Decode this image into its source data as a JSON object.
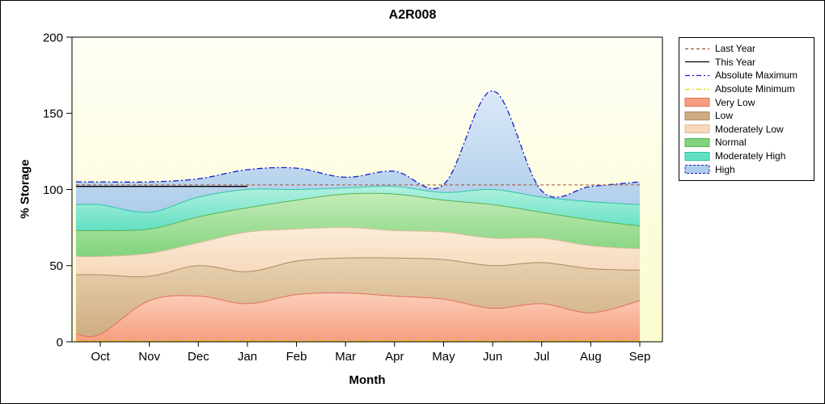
{
  "window": {
    "title": "A2R008"
  },
  "chart_data": {
    "type": "area",
    "title": "A2R008",
    "xlabel": "Month",
    "ylabel": "% Storage",
    "ylim": [
      0,
      200
    ],
    "yticks": [
      0,
      50,
      100,
      150,
      200
    ],
    "categories": [
      "Oct",
      "Nov",
      "Dec",
      "Jan",
      "Feb",
      "Mar",
      "Apr",
      "May",
      "Jun",
      "Jul",
      "Aug",
      "Sep"
    ],
    "plot_bg_top": "#fffff6",
    "plot_bg_bottom": "#fbfbce",
    "bands": [
      {
        "name": "Very Low",
        "top": [
          5,
          27,
          30,
          25,
          31,
          32,
          30,
          28,
          22,
          25,
          19,
          27
        ],
        "fill_top": "#fbceb9",
        "fill_bottom": "#f69e80",
        "edge": "#e4705a"
      },
      {
        "name": "Low",
        "top": [
          44,
          43,
          50,
          46,
          53,
          55,
          55,
          54,
          50,
          52,
          48,
          47
        ],
        "fill_top": "#e8d2b0",
        "fill_bottom": "#cfac82",
        "edge": "#ab8a64"
      },
      {
        "name": "Moderately Low",
        "top": [
          56,
          58,
          65,
          72,
          74,
          75,
          73,
          72,
          68,
          68,
          63,
          61
        ],
        "fill_top": "#fbecd9",
        "fill_bottom": "#f6d8ba",
        "edge": "#ddbd9d"
      },
      {
        "name": "Normal",
        "top": [
          73,
          74,
          82,
          88,
          93,
          97,
          97,
          93,
          90,
          85,
          80,
          76
        ],
        "fill_top": "#c4ecb8",
        "fill_bottom": "#82d37d",
        "edge": "#55b356"
      },
      {
        "name": "Moderately High",
        "top": [
          90,
          85,
          95,
          100,
          100,
          101,
          102,
          98,
          100,
          95,
          92,
          90
        ],
        "fill_top": "#b2f1e0",
        "fill_bottom": "#62e0c3",
        "edge": "#2cc6a6"
      },
      {
        "name": "High",
        "top": [
          105,
          105,
          107,
          113,
          114,
          108,
          112,
          103,
          165,
          99,
          102,
          105
        ],
        "fill_top": "#dbe9f8",
        "fill_bottom": "#aecdea",
        "edge": "#1a1ad0",
        "edge_dash": "7,3,2,3"
      }
    ],
    "lines": [
      {
        "name": "Absolute Minimum",
        "value": 0.6,
        "color": "#e6d400",
        "dash": "7,3,2,3",
        "span": "full",
        "width": 1.2
      },
      {
        "name": "Last Year",
        "value": 103,
        "color": "#a0522d",
        "dash": "4,3",
        "span": "full",
        "width": 1
      },
      {
        "name": "This Year",
        "value": 102,
        "color": "#000000",
        "dash": "",
        "span": [
          0,
          3
        ],
        "width": 1.4
      }
    ],
    "legend": [
      {
        "label": "Last Year",
        "type": "line",
        "color": "#a0522d",
        "dash": "4,3"
      },
      {
        "label": "This Year",
        "type": "line",
        "color": "#000000",
        "dash": ""
      },
      {
        "label": "Absolute Maximum",
        "type": "line",
        "color": "#1a1ad0",
        "dash": "6,3,2,3"
      },
      {
        "label": "Absolute Minimum",
        "type": "line",
        "color": "#e6d400",
        "dash": "6,3,2,3"
      },
      {
        "label": "Very Low",
        "type": "fill",
        "fill": "#f69e80",
        "edge": "#e4705a"
      },
      {
        "label": "Low",
        "type": "fill",
        "fill": "#cfac82",
        "edge": "#ab8a64"
      },
      {
        "label": "Moderately Low",
        "type": "fill",
        "fill": "#f6d8ba",
        "edge": "#ddbd9d"
      },
      {
        "label": "Normal",
        "type": "fill",
        "fill": "#82d37d",
        "edge": "#55b356"
      },
      {
        "label": "Moderately High",
        "type": "fill",
        "fill": "#62e0c3",
        "edge": "#2cc6a6"
      },
      {
        "label": "High",
        "type": "fill",
        "fill": "#aecdea",
        "edge": "#1a1ad0",
        "edge_dash": "3,2"
      }
    ]
  }
}
